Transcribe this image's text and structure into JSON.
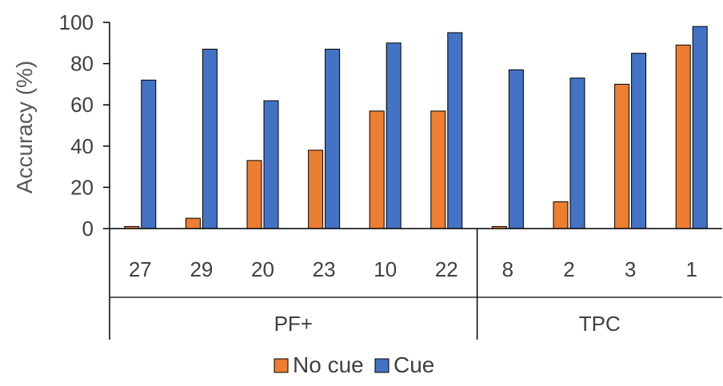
{
  "chart_data": {
    "type": "bar",
    "title": "",
    "xlabel": "",
    "ylabel": "Accuracy (%)",
    "ylim": [
      0,
      100
    ],
    "yticks": [
      0,
      20,
      40,
      60,
      80,
      100
    ],
    "grid": false,
    "legend_position": "bottom",
    "categories": [
      "27",
      "29",
      "20",
      "23",
      "10",
      "22",
      "8",
      "2",
      "3",
      "1"
    ],
    "groups": [
      {
        "label": "PF+",
        "categories": [
          "27",
          "29",
          "20",
          "23",
          "10",
          "22"
        ]
      },
      {
        "label": "TPC",
        "categories": [
          "8",
          "2",
          "3",
          "1"
        ]
      }
    ],
    "series": [
      {
        "name": "No cue",
        "color": "#ED7D31",
        "values": [
          1,
          5,
          33,
          38,
          57,
          57,
          1,
          13,
          70,
          89
        ]
      },
      {
        "name": "Cue",
        "color": "#4472C4",
        "values": [
          72,
          87,
          62,
          87,
          90,
          95,
          77,
          73,
          85,
          98
        ]
      }
    ]
  }
}
